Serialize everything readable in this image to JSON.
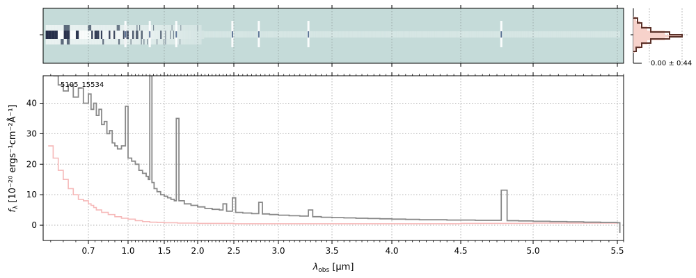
{
  "chart_data": {
    "type": "line",
    "object_label": "5105_15534",
    "xlabel_main": "λ",
    "xlabel_sub": "obs",
    "xlabel_unit": "[μm]",
    "ylabel_main": "f",
    "ylabel_sub": "λ",
    "ylabel_unit": "[10⁻²⁰ ergs⁻¹cm⁻²Å⁻¹]",
    "x_ticks": [
      {
        "v": 0.7,
        "label": "0.7"
      },
      {
        "v": 1.0,
        "label": "1.0"
      },
      {
        "v": 1.5,
        "label": "1.5"
      },
      {
        "v": 2.0,
        "label": "2.0"
      },
      {
        "v": 2.5,
        "label": "2.5"
      },
      {
        "v": 3.0,
        "label": "3.0"
      },
      {
        "v": 3.5,
        "label": "3.5"
      },
      {
        "v": 4.0,
        "label": "4.0"
      },
      {
        "v": 4.5,
        "label": "4.5"
      },
      {
        "v": 5.0,
        "label": "5.0"
      },
      {
        "v": 5.5,
        "label": "5.5"
      }
    ],
    "y_ticks": [
      {
        "v": 0,
        "label": "0"
      },
      {
        "v": 10,
        "label": "10"
      },
      {
        "v": 20,
        "label": "20"
      },
      {
        "v": 30,
        "label": "30"
      },
      {
        "v": 40,
        "label": "40"
      }
    ],
    "xlim": [
      0.52,
      5.55
    ],
    "ylim": [
      -5,
      49
    ],
    "grid": true,
    "x_scale": "nonlinear (compressed short wavelengths)",
    "series": [
      {
        "color": "#888888",
        "style": "steps",
        "points": [
          [
            0.56,
            49
          ],
          [
            0.58,
            46
          ],
          [
            0.6,
            44
          ],
          [
            0.62,
            46
          ],
          [
            0.64,
            42
          ],
          [
            0.66,
            45
          ],
          [
            0.68,
            40
          ],
          [
            0.7,
            43
          ],
          [
            0.72,
            38
          ],
          [
            0.74,
            40
          ],
          [
            0.76,
            36
          ],
          [
            0.78,
            38
          ],
          [
            0.8,
            33
          ],
          [
            0.82,
            34
          ],
          [
            0.84,
            30
          ],
          [
            0.86,
            31
          ],
          [
            0.88,
            27
          ],
          [
            0.9,
            26
          ],
          [
            0.92,
            25
          ],
          [
            0.95,
            26
          ],
          [
            0.98,
            39
          ],
          [
            1.0,
            22
          ],
          [
            1.05,
            21
          ],
          [
            1.1,
            20
          ],
          [
            1.15,
            18
          ],
          [
            1.2,
            17
          ],
          [
            1.25,
            16
          ],
          [
            1.28,
            15
          ],
          [
            1.3,
            49
          ],
          [
            1.33,
            14
          ],
          [
            1.36,
            12
          ],
          [
            1.4,
            11
          ],
          [
            1.45,
            10
          ],
          [
            1.5,
            9.5
          ],
          [
            1.55,
            9
          ],
          [
            1.6,
            8.5
          ],
          [
            1.65,
            8
          ],
          [
            1.68,
            35
          ],
          [
            1.72,
            8
          ],
          [
            1.8,
            7
          ],
          [
            1.9,
            6.5
          ],
          [
            2.0,
            6
          ],
          [
            2.1,
            5.5
          ],
          [
            2.2,
            5.2
          ],
          [
            2.3,
            5
          ],
          [
            2.35,
            7
          ],
          [
            2.4,
            4.6
          ],
          [
            2.45,
            4.6
          ],
          [
            2.48,
            9
          ],
          [
            2.52,
            4.2
          ],
          [
            2.6,
            4
          ],
          [
            2.7,
            3.8
          ],
          [
            2.78,
            7.5
          ],
          [
            2.82,
            3.7
          ],
          [
            2.9,
            3.5
          ],
          [
            3.0,
            3.3
          ],
          [
            3.1,
            3.1
          ],
          [
            3.2,
            3.0
          ],
          [
            3.28,
            5
          ],
          [
            3.32,
            2.8
          ],
          [
            3.4,
            2.6
          ],
          [
            3.5,
            2.5
          ],
          [
            3.6,
            2.4
          ],
          [
            3.7,
            2.3
          ],
          [
            3.8,
            2.2
          ],
          [
            3.9,
            2.1
          ],
          [
            4.0,
            2.0
          ],
          [
            4.1,
            1.9
          ],
          [
            4.2,
            1.8
          ],
          [
            4.3,
            1.8
          ],
          [
            4.4,
            1.7
          ],
          [
            4.5,
            1.7
          ],
          [
            4.6,
            1.6
          ],
          [
            4.7,
            1.6
          ],
          [
            4.78,
            11.5
          ],
          [
            4.82,
            1.5
          ],
          [
            4.9,
            1.4
          ],
          [
            5.0,
            1.3
          ],
          [
            5.1,
            1.2
          ],
          [
            5.2,
            1.1
          ],
          [
            5.3,
            1.0
          ],
          [
            5.4,
            0.9
          ],
          [
            5.5,
            0.8
          ],
          [
            5.52,
            -2.5
          ]
        ]
      },
      {
        "color": "#f6b8b8",
        "style": "steps",
        "points": [
          [
            0.54,
            26
          ],
          [
            0.56,
            22
          ],
          [
            0.58,
            18
          ],
          [
            0.6,
            15
          ],
          [
            0.62,
            12
          ],
          [
            0.64,
            10
          ],
          [
            0.66,
            8.5
          ],
          [
            0.68,
            8
          ],
          [
            0.7,
            7
          ],
          [
            0.72,
            6.5
          ],
          [
            0.74,
            5.8
          ],
          [
            0.76,
            5
          ],
          [
            0.8,
            4.2
          ],
          [
            0.85,
            3.5
          ],
          [
            0.9,
            2.8
          ],
          [
            0.95,
            2.3
          ],
          [
            1.0,
            2.0
          ],
          [
            1.1,
            1.5
          ],
          [
            1.2,
            1.2
          ],
          [
            1.3,
            1.0
          ],
          [
            1.4,
            0.9
          ],
          [
            1.5,
            0.8
          ],
          [
            1.7,
            0.7
          ],
          [
            2.0,
            0.6
          ],
          [
            2.5,
            0.5
          ],
          [
            3.0,
            0.5
          ],
          [
            3.5,
            0.5
          ],
          [
            4.0,
            0.5
          ],
          [
            4.5,
            0.6
          ],
          [
            5.0,
            0.7
          ],
          [
            5.5,
            0.9
          ]
        ]
      }
    ],
    "inset": {
      "label": "0.00 ± 0.44",
      "description_free": true
    }
  }
}
